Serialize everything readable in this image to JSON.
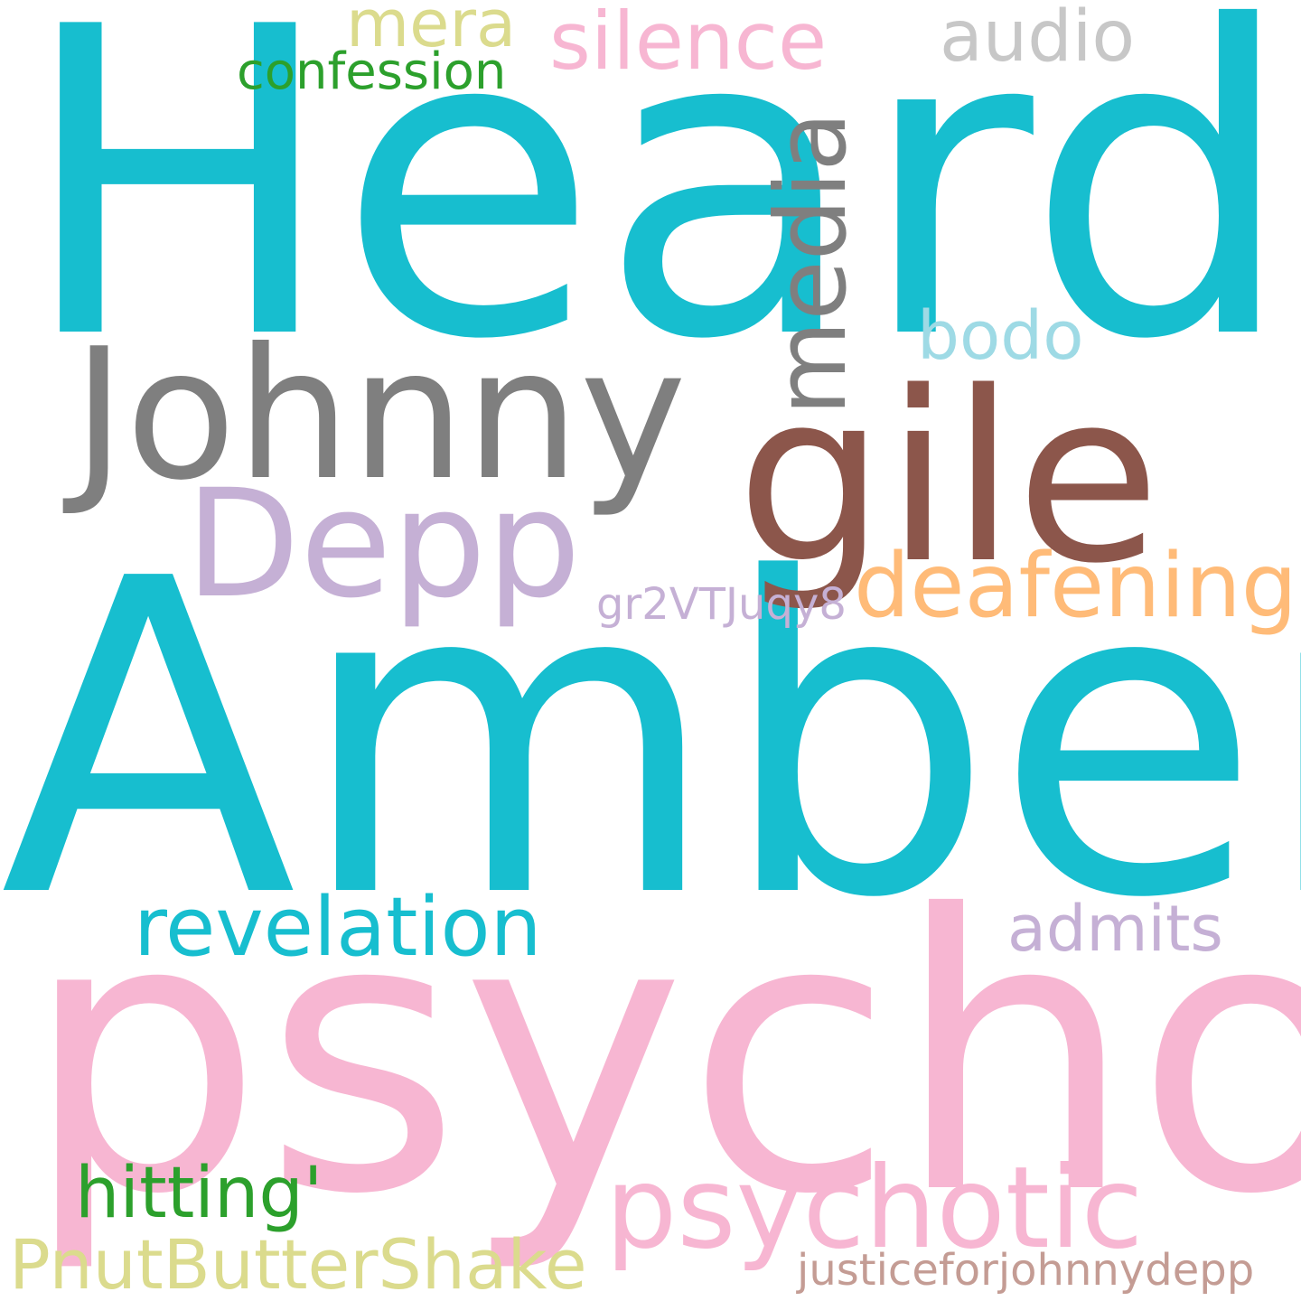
{
  "words": {
    "heard": {
      "text": "Heard",
      "color": "#17becf"
    },
    "amber": {
      "text": "Amber",
      "color": "#17becf"
    },
    "psycho": {
      "text": "psycho",
      "color": "#f7b6d2"
    },
    "johnny": {
      "text": "Johnny",
      "color": "#7f7f7f"
    },
    "gile": {
      "text": "gile",
      "color": "#8c564b"
    },
    "depp": {
      "text": "Depp",
      "color": "#c5b0d5"
    },
    "media": {
      "text": "media",
      "color": "#7f7f7f"
    },
    "silence": {
      "text": "silence",
      "color": "#f7b6d2"
    },
    "audio": {
      "text": "audio",
      "color": "#c7c7c7"
    },
    "mera": {
      "text": "mera",
      "color": "#dbdb8d"
    },
    "confession": {
      "text": "confession",
      "color": "#2ca02c"
    },
    "bodo": {
      "text": "bodo",
      "color": "#9edae5"
    },
    "deafening": {
      "text": "deafening",
      "color": "#ffbb78"
    },
    "gr2v": {
      "text": "gr2VTJuqy8",
      "color": "#c5b0d5"
    },
    "revelation": {
      "text": "revelation",
      "color": "#17becf"
    },
    "admits": {
      "text": "admits",
      "color": "#c5b0d5"
    },
    "hitting": {
      "text": "hitting'",
      "color": "#2ca02c"
    },
    "psychotic": {
      "text": "psychotic",
      "color": "#f7b6d2"
    },
    "pnut": {
      "text": "PnutButterShake",
      "color": "#dbdb8d"
    },
    "justice": {
      "text": "justiceforjohnnydepp",
      "color": "#c49c94"
    }
  }
}
